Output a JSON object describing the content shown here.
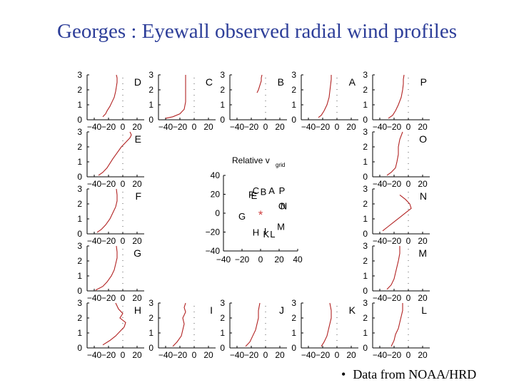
{
  "slide": {
    "title": "Georges : Eyewall observed radial wind profiles",
    "footer": "Data from NOAA/HRD",
    "bullet": "•"
  },
  "colors": {
    "title": "#2d3e99",
    "profile": "#b22222",
    "axis": "#000000",
    "center_marker": "#d04040"
  },
  "chart_data": [
    {
      "type": "line",
      "panels": [
        {
          "letter": "D",
          "x_ticks": [
            "−40",
            "−20",
            "0",
            "20"
          ],
          "y_ticks": [
            "3",
            "2",
            "1",
            "0"
          ],
          "xlim": [
            -50,
            30
          ],
          "ylim": [
            0,
            3
          ],
          "series": [
            {
              "x": [
                -28,
                -24,
                -22,
                -18,
                -15,
                -12,
                -10,
                -9,
                -8,
                -8,
                -9
              ],
              "y": [
                0.2,
                0.4,
                0.6,
                0.9,
                1.2,
                1.5,
                1.9,
                2.2,
                2.5,
                2.8,
                3.0
              ]
            }
          ]
        },
        {
          "letter": "C",
          "x_ticks": [
            "−40",
            "−20",
            "0",
            "20"
          ],
          "y_ticks": [
            "3",
            "2",
            "1",
            "0"
          ],
          "xlim": [
            -50,
            30
          ],
          "ylim": [
            0,
            3
          ],
          "series": [
            {
              "x": [
                -40,
                -30,
                -20,
                -14,
                -12,
                -12,
                -12,
                -12
              ],
              "y": [
                0.1,
                0.2,
                0.4,
                0.7,
                1.2,
                1.8,
                2.4,
                3.0
              ]
            }
          ]
        },
        {
          "letter": "B",
          "x_ticks": [
            "−40",
            "−20",
            "0",
            "20"
          ],
          "y_ticks": [
            "3",
            "2",
            "1",
            "0"
          ],
          "xlim": [
            -50,
            30
          ],
          "ylim": [
            0,
            3
          ],
          "series": [
            {
              "x": [
                -12,
                -10,
                -8,
                -6,
                -6,
                -5
              ],
              "y": [
                1.8,
                2.0,
                2.3,
                2.6,
                2.8,
                3.0
              ]
            }
          ]
        },
        {
          "letter": "A",
          "x_ticks": [
            "−40",
            "−20",
            "0",
            "20"
          ],
          "y_ticks": [
            "3",
            "2",
            "1",
            "0"
          ],
          "xlim": [
            -50,
            30
          ],
          "ylim": [
            0,
            3
          ],
          "series": [
            {
              "x": [
                -26,
                -22,
                -18,
                -14,
                -11,
                -10,
                -9,
                -8,
                -8
              ],
              "y": [
                0.15,
                0.3,
                0.6,
                1.0,
                1.5,
                1.9,
                2.3,
                2.7,
                3.0
              ]
            }
          ]
        },
        {
          "letter": "P",
          "x_ticks": [
            "−40",
            "−20",
            "0",
            "20"
          ],
          "y_ticks": [
            "3",
            "2",
            "1",
            "0"
          ],
          "xlim": [
            -50,
            30
          ],
          "ylim": [
            0,
            3
          ],
          "series": [
            {
              "x": [
                -28,
                -22,
                -18,
                -14,
                -10,
                -8,
                -7,
                -7,
                -6
              ],
              "y": [
                0.1,
                0.3,
                0.6,
                1.0,
                1.5,
                2.0,
                2.4,
                2.7,
                3.0
              ]
            }
          ]
        },
        {
          "letter": "E",
          "x_ticks": [
            "−40",
            "−20",
            "0",
            "20"
          ],
          "y_ticks": [
            "3",
            "2",
            "1",
            "0"
          ],
          "xlim": [
            -50,
            30
          ],
          "ylim": [
            0,
            3
          ],
          "series": [
            {
              "x": [
                -34,
                -28,
                -22,
                -18,
                -14,
                -8,
                -2,
                4,
                10,
                12,
                10
              ],
              "y": [
                0.1,
                0.3,
                0.6,
                0.9,
                1.2,
                1.6,
                2.0,
                2.3,
                2.6,
                2.8,
                3.0
              ]
            }
          ]
        },
        {
          "letter": "O",
          "x_ticks": [
            "−40",
            "−20",
            "0",
            "20"
          ],
          "y_ticks": [
            "3",
            "2",
            "1",
            "0"
          ],
          "xlim": [
            -50,
            30
          ],
          "ylim": [
            0,
            3
          ],
          "series": [
            {
              "x": [
                -30,
                -24,
                -18,
                -16,
                -14,
                -14,
                -12,
                -8
              ],
              "y": [
                0.1,
                0.3,
                0.6,
                1.0,
                1.5,
                2.0,
                2.5,
                3.0
              ]
            }
          ]
        },
        {
          "letter": "F",
          "x_ticks": [
            "−40",
            "−20",
            "0",
            "20"
          ],
          "y_ticks": [
            "3",
            "2",
            "1",
            "0"
          ],
          "xlim": [
            -50,
            30
          ],
          "ylim": [
            0,
            3
          ],
          "series": [
            {
              "x": [
                -36,
                -30,
                -24,
                -18,
                -14,
                -10,
                -8,
                -8,
                -9
              ],
              "y": [
                0.1,
                0.3,
                0.6,
                1.0,
                1.4,
                1.8,
                2.2,
                2.6,
                3.0
              ]
            }
          ]
        },
        {
          "letter": "N",
          "x_ticks": [
            "−40",
            "−20",
            "0",
            "20"
          ],
          "y_ticks": [
            "3",
            "2",
            "1",
            "0"
          ],
          "xlim": [
            -50,
            30
          ],
          "ylim": [
            0,
            3
          ],
          "series": [
            {
              "x": [
                -36,
                -28,
                -20,
                -12,
                -4,
                4,
                2,
                -4,
                -12
              ],
              "y": [
                0.2,
                0.5,
                0.8,
                1.1,
                1.4,
                1.7,
                2.0,
                2.3,
                2.6
              ]
            }
          ]
        },
        {
          "letter": "G",
          "x_ticks": [
            "−40",
            "−20",
            "0",
            "20"
          ],
          "y_ticks": [
            "3",
            "2",
            "1",
            "0"
          ],
          "xlim": [
            -50,
            30
          ],
          "ylim": [
            0,
            3
          ],
          "series": [
            {
              "x": [
                -38,
                -28,
                -22,
                -16,
                -12,
                -10,
                -8,
                -8,
                -9
              ],
              "y": [
                0.05,
                0.3,
                0.6,
                1.0,
                1.4,
                1.8,
                2.2,
                2.6,
                3.0
              ]
            }
          ]
        },
        {
          "letter": "M",
          "x_ticks": [
            "−40",
            "−20",
            "0",
            "20"
          ],
          "y_ticks": [
            "3",
            "2",
            "1",
            "0"
          ],
          "xlim": [
            -50,
            30
          ],
          "ylim": [
            0,
            3
          ],
          "series": [
            {
              "x": [
                -30,
                -24,
                -20,
                -18,
                -16,
                -14,
                -12,
                -12
              ],
              "y": [
                0.1,
                0.4,
                0.8,
                1.2,
                1.6,
                2.0,
                2.5,
                3.0
              ]
            }
          ]
        },
        {
          "letter": "H",
          "x_ticks": [
            "−40",
            "−20",
            "0",
            "20"
          ],
          "y_ticks": [
            "3",
            "2",
            "1",
            "0"
          ],
          "xlim": [
            -50,
            30
          ],
          "ylim": [
            0,
            3
          ],
          "series": [
            {
              "x": [
                -28,
                -18,
                -10,
                -4,
                2,
                4,
                -4,
                0,
                -6,
                -10
              ],
              "y": [
                0.2,
                0.5,
                0.8,
                1.1,
                1.4,
                1.7,
                2.0,
                2.3,
                2.6,
                3.0
              ]
            }
          ]
        },
        {
          "letter": "I",
          "x_ticks": [
            "−40",
            "−20",
            "0",
            "20"
          ],
          "y_ticks": [
            "3",
            "2",
            "1",
            "0"
          ],
          "xlim": [
            -50,
            30
          ],
          "ylim": [
            0,
            3
          ],
          "series": [
            {
              "x": [
                -30,
                -24,
                -18,
                -16,
                -14,
                -16,
                -12,
                -14,
                -12
              ],
              "y": [
                0.1,
                0.4,
                0.8,
                1.2,
                1.6,
                2.0,
                2.4,
                2.7,
                3.0
              ]
            }
          ]
        },
        {
          "letter": "J",
          "x_ticks": [
            "−40",
            "−20",
            "0",
            "20"
          ],
          "y_ticks": [
            "3",
            "2",
            "1",
            "0"
          ],
          "xlim": [
            -50,
            30
          ],
          "ylim": [
            0,
            3
          ],
          "series": [
            {
              "x": [
                -28,
                -22,
                -18,
                -14,
                -12,
                -10,
                -10,
                -8
              ],
              "y": [
                0.1,
                0.4,
                0.8,
                1.2,
                1.6,
                2.0,
                2.5,
                3.0
              ]
            }
          ]
        },
        {
          "letter": "K",
          "x_ticks": [
            "−40",
            "−20",
            "0",
            "20"
          ],
          "y_ticks": [
            "3",
            "2",
            "1",
            "0"
          ],
          "xlim": [
            -50,
            30
          ],
          "ylim": [
            0,
            3
          ],
          "series": [
            {
              "x": [
                -22,
                -18,
                -14,
                -12,
                -10,
                -8,
                -8,
                -10
              ],
              "y": [
                0.1,
                0.4,
                0.8,
                1.2,
                1.6,
                2.0,
                2.5,
                3.0
              ]
            }
          ]
        },
        {
          "letter": "L",
          "x_ticks": [
            "−40",
            "−20",
            "0",
            "20"
          ],
          "y_ticks": [
            "3",
            "2",
            "1",
            "0"
          ],
          "xlim": [
            -50,
            30
          ],
          "ylim": [
            0,
            3
          ],
          "series": [
            {
              "x": [
                -24,
                -20,
                -18,
                -14,
                -12,
                -10,
                -8,
                -8
              ],
              "y": [
                0.1,
                0.5,
                0.9,
                1.3,
                1.7,
                2.1,
                2.5,
                3.0
              ]
            }
          ]
        }
      ]
    },
    {
      "type": "scatter",
      "title": "Relative v",
      "title_subscript": "grid",
      "xlim": [
        -40,
        40
      ],
      "ylim": [
        -40,
        40
      ],
      "x_ticks": [
        "−40",
        "−20",
        "0",
        "20",
        "40"
      ],
      "y_ticks": [
        "40",
        "20",
        "0",
        "−20",
        "−40"
      ],
      "points": [
        {
          "label": "F",
          "x": -10,
          "y": 20
        },
        {
          "label": "E",
          "x": -7,
          "y": 19
        },
        {
          "label": "C",
          "x": -5,
          "y": 24
        },
        {
          "label": "B",
          "x": 3,
          "y": 23
        },
        {
          "label": "A",
          "x": 12,
          "y": 24
        },
        {
          "label": "P",
          "x": 23,
          "y": 24
        },
        {
          "label": "O",
          "x": 23,
          "y": 8
        },
        {
          "label": "N",
          "x": 25,
          "y": 8
        },
        {
          "label": "G",
          "x": -20,
          "y": -3
        },
        {
          "label": "M",
          "x": 22,
          "y": -14
        },
        {
          "label": "H",
          "x": -5,
          "y": -20
        },
        {
          "label": "I",
          "x": 5,
          "y": -19
        },
        {
          "label": "K",
          "x": 6,
          "y": -22
        },
        {
          "label": "L",
          "x": 13,
          "y": -22
        }
      ],
      "center_marker": "*"
    }
  ]
}
